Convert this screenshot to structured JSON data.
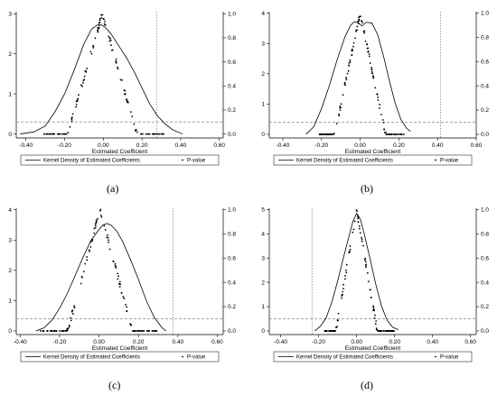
{
  "legend": {
    "kernel_label": "Kernel Density of Estimated Coefficients",
    "pvalue_label": "P-value"
  },
  "chart_data": [
    {
      "panel": "(a)",
      "type": "line",
      "xlabel": "Estimated Coefficient",
      "xlim": [
        -0.45,
        0.62
      ],
      "xticks": [
        "-0.40",
        "-0.20",
        "0.00",
        "0.20",
        "0.40",
        "0.60"
      ],
      "left_ylim": [
        -0.1,
        3.05
      ],
      "left_yticks": [
        "0",
        "1",
        "2",
        "3"
      ],
      "right_ylim": [
        -0.033,
        1.017
      ],
      "right_yticks": [
        "0.0",
        "0.2",
        "0.4",
        "0.6",
        "0.8",
        "1.0"
      ],
      "true_coefficient": 0.275,
      "pvalue_threshold": 0.1,
      "kernel_density": {
        "x": [
          -0.43,
          -0.36,
          -0.3,
          -0.25,
          -0.2,
          -0.15,
          -0.1,
          -0.06,
          -0.03,
          -0.01,
          0.01,
          0.04,
          0.08,
          0.12,
          0.16,
          0.2,
          0.24,
          0.28,
          0.32,
          0.36,
          0.41
        ],
        "y": [
          0.0,
          0.05,
          0.2,
          0.55,
          1.0,
          1.6,
          2.25,
          2.62,
          2.72,
          2.72,
          2.66,
          2.5,
          2.2,
          1.9,
          1.55,
          1.15,
          0.75,
          0.45,
          0.25,
          0.1,
          0.0
        ]
      },
      "pvalue": {
        "center": -0.005,
        "peak": 1.0,
        "slope": 5.6,
        "xmin": -0.31,
        "xmax": 0.33
      }
    },
    {
      "panel": "(b)",
      "type": "line",
      "xlabel": "Estimated Coefficient",
      "xlim": [
        -0.47,
        0.6
      ],
      "xticks": [
        "-0.40",
        "-0.20",
        "0.00",
        "0.20",
        "0.40",
        "0.60"
      ],
      "left_ylim": [
        -0.12,
        4.05
      ],
      "left_yticks": [
        "0",
        "1",
        "2",
        "3",
        "4"
      ],
      "right_ylim": [
        -0.03,
        1.01
      ],
      "right_yticks": [
        "0.0",
        "0.2",
        "0.4",
        "0.6",
        "0.8",
        "1.0"
      ],
      "true_coefficient": 0.415,
      "pvalue_threshold": 0.1,
      "kernel_density": {
        "x": [
          -0.28,
          -0.24,
          -0.2,
          -0.16,
          -0.12,
          -0.08,
          -0.05,
          -0.03,
          -0.01,
          0.01,
          0.03,
          0.06,
          0.09,
          0.12,
          0.15,
          0.18,
          0.21,
          0.24,
          0.26
        ],
        "y": [
          0.0,
          0.25,
          0.85,
          1.6,
          2.45,
          3.2,
          3.6,
          3.72,
          3.68,
          3.58,
          3.7,
          3.68,
          3.3,
          2.6,
          1.8,
          1.05,
          0.5,
          0.2,
          0.1
        ]
      },
      "pvalue": {
        "center": 0.0,
        "peak": 1.0,
        "slope": 7.6,
        "xmin": -0.21,
        "xmax": 0.23
      }
    },
    {
      "panel": "(c)",
      "type": "line",
      "xlabel": "Estimated Coefficient",
      "xlim": [
        -0.42,
        0.63
      ],
      "xticks": [
        "-0.40",
        "-0.20",
        "0.00",
        "0.20",
        "0.40",
        "0.60"
      ],
      "left_ylim": [
        -0.12,
        4.05
      ],
      "left_yticks": [
        "0",
        "1",
        "2",
        "3",
        "4"
      ],
      "right_ylim": [
        -0.03,
        1.01
      ],
      "right_yticks": [
        "0.0",
        "0.2",
        "0.4",
        "0.6",
        "0.8",
        "1.0"
      ],
      "true_coefficient": 0.375,
      "pvalue_threshold": 0.1,
      "kernel_density": {
        "x": [
          -0.32,
          -0.28,
          -0.24,
          -0.2,
          -0.16,
          -0.12,
          -0.08,
          -0.04,
          0.0,
          0.02,
          0.04,
          0.06,
          0.09,
          0.12,
          0.16,
          0.2,
          0.24,
          0.28,
          0.32,
          0.34
        ],
        "y": [
          0.0,
          0.1,
          0.35,
          0.75,
          1.25,
          1.85,
          2.45,
          3.0,
          3.35,
          3.5,
          3.55,
          3.5,
          3.3,
          2.95,
          2.35,
          1.7,
          1.0,
          0.45,
          0.1,
          0.0
        ]
      },
      "pvalue": {
        "center": 0.005,
        "peak": 1.0,
        "slope": 6.1,
        "xmin": -0.3,
        "xmax": 0.3
      }
    },
    {
      "panel": "(d)",
      "type": "line",
      "xlabel": "Estimated Coefficient",
      "xlim": [
        -0.46,
        0.63
      ],
      "xticks": [
        "-0.40",
        "-0.20",
        "0.00",
        "0.20",
        "0.40",
        "0.60"
      ],
      "left_ylim": [
        -0.15,
        5.05
      ],
      "left_yticks": [
        "0",
        "1",
        "2",
        "3",
        "4",
        "5"
      ],
      "right_ylim": [
        -0.03,
        1.01
      ],
      "right_yticks": [
        "0.0",
        "0.2",
        "0.4",
        "0.6",
        "0.8",
        "1.0"
      ],
      "true_coefficient": -0.235,
      "pvalue_threshold": 0.1,
      "kernel_density": {
        "x": [
          -0.22,
          -0.19,
          -0.16,
          -0.13,
          -0.1,
          -0.07,
          -0.04,
          -0.02,
          0.0,
          0.02,
          0.04,
          0.07,
          0.1,
          0.13,
          0.16,
          0.19,
          0.22
        ],
        "y": [
          0.0,
          0.2,
          0.55,
          1.2,
          2.05,
          3.0,
          3.9,
          4.5,
          4.85,
          4.6,
          4.0,
          3.0,
          1.95,
          1.05,
          0.45,
          0.15,
          0.05
        ]
      },
      "pvalue": {
        "center": 0.0,
        "peak": 1.0,
        "slope": 9.2,
        "xmin": -0.17,
        "xmax": 0.2
      }
    }
  ]
}
